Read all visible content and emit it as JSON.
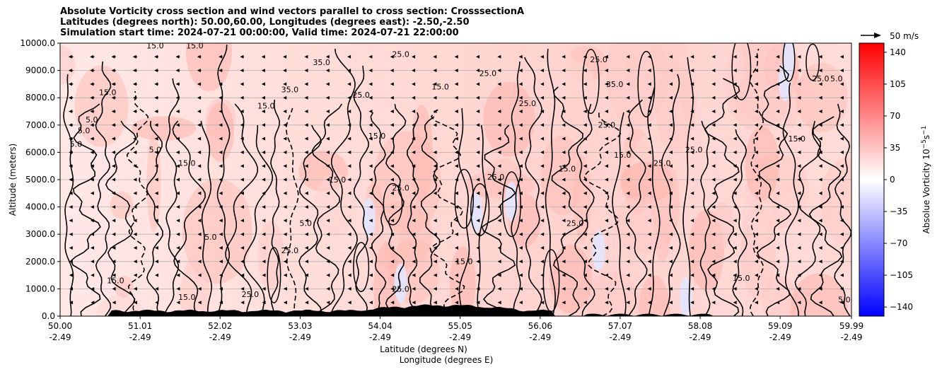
{
  "chart_data": {
    "type": "heatmap",
    "title_lines": [
      "Absolute Vorticity cross section and wind vectors parallel to cross section: CrosssectionA",
      "Latitudes (degrees north): 50.00,60.00, Longitudes (degrees east): -2.50,-2.50",
      "Simulation start time: 2024-07-21 00:00:00, Valid time: 2024-07-21 22:00:00"
    ],
    "ylabel": "Altitude (meters)",
    "xlabel_lines": [
      "Latitude (degrees N)",
      "Longitude (degrees E)"
    ],
    "ylim": [
      0,
      10000
    ],
    "y_ticks": [
      {
        "value": 0,
        "label": "0.0"
      },
      {
        "value": 1000,
        "label": "1000.0"
      },
      {
        "value": 2000,
        "label": "2000.0"
      },
      {
        "value": 3000,
        "label": "3000.0"
      },
      {
        "value": 4000,
        "label": "4000.0"
      },
      {
        "value": 5000,
        "label": "5000.0"
      },
      {
        "value": 6000,
        "label": "6000.0"
      },
      {
        "value": 7000,
        "label": "7000.0"
      },
      {
        "value": 8000,
        "label": "8000.0"
      },
      {
        "value": 9000,
        "label": "9000.0"
      },
      {
        "value": 10000,
        "label": "10000.0"
      }
    ],
    "xlim": [
      50.0,
      59.99
    ],
    "x_ticks": [
      {
        "value": 50.0,
        "lat": "50.00",
        "lon": "-2.49"
      },
      {
        "value": 51.01,
        "lat": "51.01",
        "lon": "-2.49"
      },
      {
        "value": 52.02,
        "lat": "52.02",
        "lon": "-2.49"
      },
      {
        "value": 53.03,
        "lat": "53.03",
        "lon": "-2.49"
      },
      {
        "value": 54.04,
        "lat": "54.04",
        "lon": "-2.49"
      },
      {
        "value": 55.05,
        "lat": "55.05",
        "lon": "-2.49"
      },
      {
        "value": 56.06,
        "lat": "56.06",
        "lon": "-2.49"
      },
      {
        "value": 57.07,
        "lat": "57.07",
        "lon": "-2.49"
      },
      {
        "value": 58.08,
        "lat": "58.08",
        "lon": "-2.49"
      },
      {
        "value": 59.09,
        "lat": "59.09",
        "lon": "-2.49"
      },
      {
        "value": 59.99,
        "lat": "59.99",
        "lon": "-2.49"
      }
    ],
    "grid": "horizontal",
    "colorbar": {
      "label": "Absolue Vorticity 10$^{-5}$s$^{-1}$",
      "label_main": "Absolue Vorticity 10",
      "label_exp1": "−5",
      "label_mid": "s",
      "label_exp2": "−1",
      "range": [
        -150,
        150
      ],
      "colormap": "bwr",
      "ticks": [
        {
          "value": 140,
          "label": "140"
        },
        {
          "value": 105,
          "label": "105"
        },
        {
          "value": 70,
          "label": "70"
        },
        {
          "value": 35,
          "label": "35"
        },
        {
          "value": 0,
          "label": "0"
        },
        {
          "value": -35,
          "label": "−35"
        },
        {
          "value": -70,
          "label": "−70"
        },
        {
          "value": -105,
          "label": "−105"
        },
        {
          "value": -140,
          "label": "−140"
        }
      ]
    },
    "quiver_key": {
      "label": "50 m/s",
      "speed": 50
    },
    "contour_labels": [
      {
        "text": "5.0",
        "lat": 50.2,
        "alt": 6200
      },
      {
        "text": "5.0",
        "lat": 50.3,
        "alt": 6700
      },
      {
        "text": "5.0",
        "lat": 50.4,
        "alt": 7100
      },
      {
        "text": "15.0",
        "lat": 50.6,
        "alt": 8100
      },
      {
        "text": "15.0",
        "lat": 51.2,
        "alt": 9800
      },
      {
        "text": "15.0",
        "lat": 51.7,
        "alt": 9800
      },
      {
        "text": "5.0",
        "lat": 51.2,
        "alt": 6000
      },
      {
        "text": "15.0",
        "lat": 51.6,
        "alt": 5500
      },
      {
        "text": "15.0",
        "lat": 52.6,
        "alt": 7600
      },
      {
        "text": "35.0",
        "lat": 52.9,
        "alt": 8200
      },
      {
        "text": "15.0",
        "lat": 53.5,
        "alt": 4900
      },
      {
        "text": "25.0",
        "lat": 53.8,
        "alt": 8000
      },
      {
        "text": "25.0",
        "lat": 54.3,
        "alt": 9500
      },
      {
        "text": "35.0",
        "lat": 53.3,
        "alt": 9200
      },
      {
        "text": "25.0",
        "lat": 54.3,
        "alt": 4600
      },
      {
        "text": "15.0",
        "lat": 54.0,
        "alt": 6500
      },
      {
        "text": "25.0",
        "lat": 55.4,
        "alt": 8800
      },
      {
        "text": "15.0",
        "lat": 54.8,
        "alt": 8300
      },
      {
        "text": "25.0",
        "lat": 55.5,
        "alt": 5000
      },
      {
        "text": "25.0",
        "lat": 55.9,
        "alt": 7700
      },
      {
        "text": "15.0",
        "lat": 56.4,
        "alt": 5300
      },
      {
        "text": "25.0",
        "lat": 56.8,
        "alt": 9300
      },
      {
        "text": "35.0",
        "lat": 57.0,
        "alt": 8400
      },
      {
        "text": "25.0",
        "lat": 56.9,
        "alt": 6900
      },
      {
        "text": "15.0",
        "lat": 57.1,
        "alt": 5800
      },
      {
        "text": "25.0",
        "lat": 56.5,
        "alt": 3300
      },
      {
        "text": "25.0",
        "lat": 57.6,
        "alt": 5500
      },
      {
        "text": "25.0",
        "lat": 58.0,
        "alt": 6000
      },
      {
        "text": "15.0",
        "lat": 59.3,
        "alt": 6400
      },
      {
        "text": "25.0",
        "lat": 59.6,
        "alt": 8600
      },
      {
        "text": "5.0",
        "lat": 59.8,
        "alt": 8600
      },
      {
        "text": "15.0",
        "lat": 55.1,
        "alt": 1900
      },
      {
        "text": "25.0",
        "lat": 52.9,
        "alt": 2300
      },
      {
        "text": "5.0",
        "lat": 51.9,
        "alt": 2800
      },
      {
        "text": "5.0",
        "lat": 53.1,
        "alt": 3300
      },
      {
        "text": "25.0",
        "lat": 54.3,
        "alt": 900
      },
      {
        "text": "15.0",
        "lat": 50.7,
        "alt": 1200
      },
      {
        "text": "15.0",
        "lat": 51.6,
        "alt": 600
      },
      {
        "text": "25.0",
        "lat": 52.4,
        "alt": 700
      },
      {
        "text": "15.0",
        "lat": 58.6,
        "alt": 1300
      },
      {
        "text": "5.0",
        "lat": 59.9,
        "alt": 500
      }
    ]
  }
}
